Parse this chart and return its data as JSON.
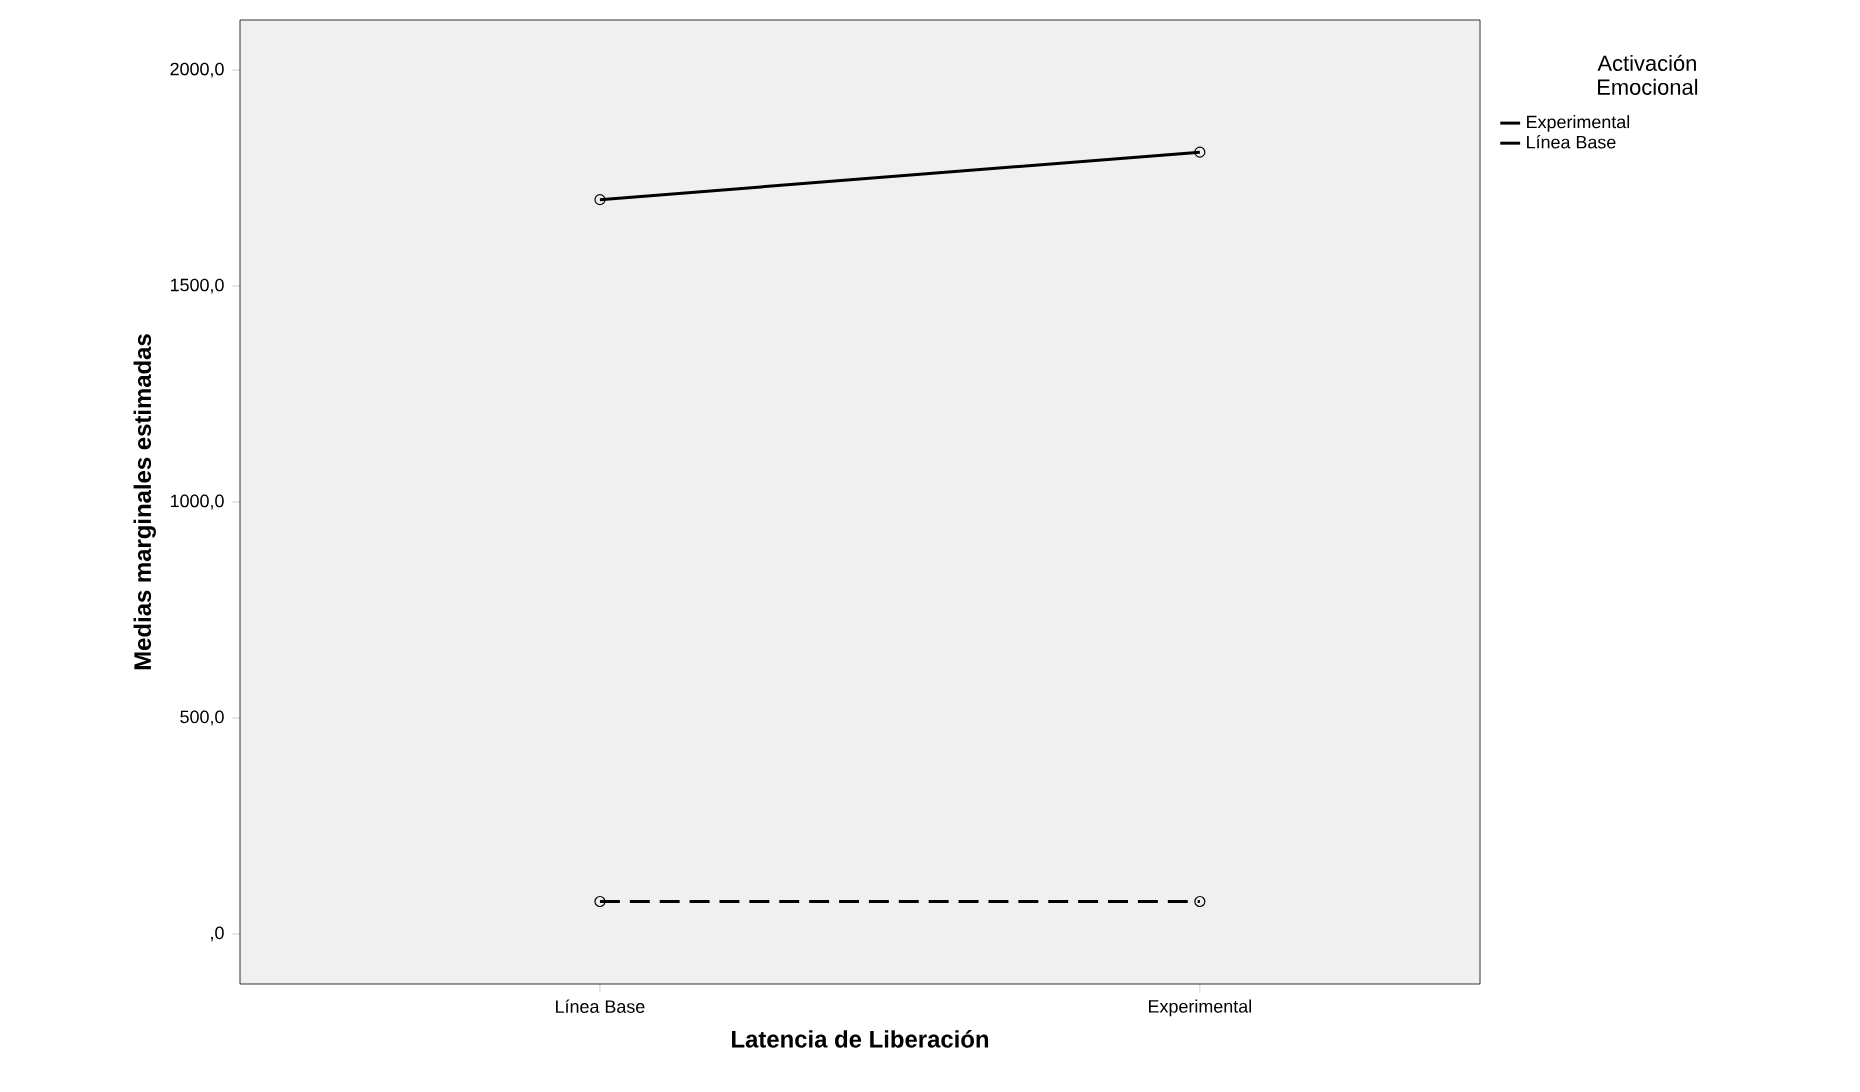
{
  "chart_data": {
    "type": "line",
    "xlabel": "Latencia de Liberación",
    "ylabel": "Medias marginales estimadas",
    "legend_title": "Activación Emocional",
    "categories": [
      "Línea Base",
      "Experimental"
    ],
    "series": [
      {
        "name": "Experimental",
        "color": "#000000",
        "line_style": "dashed",
        "values": [
          75,
          75
        ]
      },
      {
        "name": "Línea Base",
        "color": "#000000",
        "line_style": "solid",
        "values": [
          1700,
          1810
        ]
      }
    ],
    "ylim": [
      -116,
      2116
    ],
    "yticks": [
      {
        "value": 0,
        "label": ",0"
      },
      {
        "value": 500,
        "label": "500,0"
      },
      {
        "value": 1000,
        "label": "1000,0"
      },
      {
        "value": 1500,
        "label": "1500,0"
      },
      {
        "value": 2000,
        "label": "2000,0"
      }
    ],
    "marker": "circle",
    "legend": "top right",
    "grid": false
  }
}
